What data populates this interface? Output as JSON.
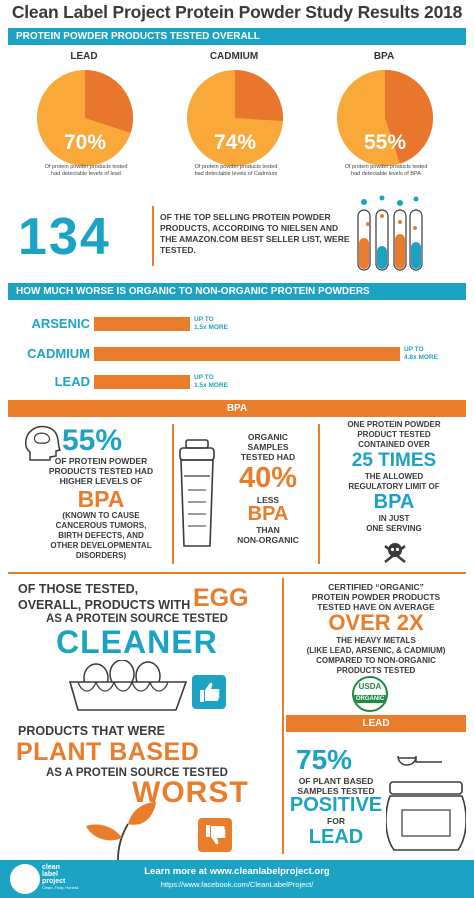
{
  "title": "Clean Label Project Protein Powder Study Results 2018",
  "section1_header": "PROTEIN POWDER PRODUCTS TESTED OVERALL",
  "pies": [
    {
      "label": "LEAD",
      "percent_text": "70%",
      "caption": "Of protein powder products tested had detectable levels of lead"
    },
    {
      "label": "CADMIUM",
      "percent_text": "74%",
      "caption": "Of protein powder products tested had detectable levels of Cadmium"
    },
    {
      "label": "BPA",
      "percent_text": "55%",
      "caption": "Of protein powder products tested had detectable levels of BPA"
    }
  ],
  "tested": {
    "number": "134",
    "text": "OF THE TOP SELLING PROTEIN POWDER PRODUCTS, ACCORDING TO NIELSEN AND THE AMAZON.COM BEST SELLER LIST, WERE TESTED."
  },
  "section2_header": "HOW MUCH WORSE IS ORGANIC TO NON-ORGANIC PROTEIN POWDERS",
  "chart_data": [
    {
      "type": "pie",
      "series": [
        {
          "name": "LEAD",
          "values": [
            70,
            30
          ]
        },
        {
          "name": "CADMIUM",
          "values": [
            74,
            26
          ]
        },
        {
          "name": "BPA",
          "values": [
            55,
            45
          ]
        }
      ]
    },
    {
      "type": "bar",
      "orientation": "horizontal",
      "categories": [
        "ARSENIC",
        "CADMIUM",
        "LEAD"
      ],
      "values": [
        1.5,
        4.8,
        1.5
      ],
      "annotations": [
        [
          "UP TO",
          "1.5x MORE"
        ],
        [
          "UP TO",
          "4.8x MORE"
        ],
        [
          "UP TO",
          "1.5x MORE"
        ]
      ],
      "xlim": [
        0,
        4.8
      ]
    }
  ],
  "bpa_header": "BPA",
  "bpa": {
    "left": {
      "pct": "55%",
      "line1": "OF PROTEIN POWDER",
      "line2": "PRODUCTS TESTED HAD",
      "line3": "HIGHER LEVELS OF",
      "big": "BPA",
      "note1": "(KNOWN TO CAUSE",
      "note2": "CANCEROUS TUMORS,",
      "note3": "BIRTH DEFECTS, AND",
      "note4": "OTHER DEVELOPMENTAL",
      "note5": "DISORDERS)"
    },
    "middle": {
      "l1": "ORGANIC",
      "l2": "SAMPLES",
      "l3": "TESTED HAD",
      "pct": "40%",
      "l4": "LESS",
      "big": "BPA",
      "l5": "THAN",
      "l6": "NON-ORGANIC"
    },
    "right": {
      "l1": "ONE PROTEIN POWDER",
      "l2": "PRODUCT TESTED",
      "l3": "CONTAINED OVER",
      "big": "25 TIMES",
      "l4": "THE ALLOWED",
      "l5": "REGULATORY LIMIT OF",
      "big2": "BPA",
      "l6": "IN JUST",
      "l7": "ONE SERVING"
    }
  },
  "egg": {
    "l1": "OF THOSE TESTED,",
    "l2": "OVERALL, PRODUCTS WITH",
    "egg": "EGG",
    "l3": "AS A PROTEIN SOURCE TESTED",
    "cleaner": "CLEANER"
  },
  "plant": {
    "l1": "PRODUCTS THAT WERE",
    "big": "PLANT BASED",
    "l2": "AS A PROTEIN SOURCE TESTED",
    "worst": "WORST"
  },
  "organic_box": {
    "l1": "CERTIFIED “ORGANIC”",
    "l2": "PROTEIN POWDER PRODUCTS",
    "l3": "TESTED HAVE ON AVERAGE",
    "big": "OVER 2X",
    "l4": "THE HEAVY METALS",
    "l5": "(LIKE LEAD, ARSENIC, & CADMIUM)",
    "l6": "COMPARED TO NON-ORGANIC",
    "l7": "PRODUCTS TESTED",
    "seal_top": "USDA",
    "seal_bottom": "ORGANIC"
  },
  "lead_header": "LEAD",
  "lead_box": {
    "pct": "75%",
    "l1": "OF PLANT BASED",
    "l2": "SAMPLES TESTED",
    "big": "POSITIVE",
    "l3": "FOR",
    "big2": "LEAD"
  },
  "footer": {
    "logo_line1": "clean",
    "logo_line2": "label",
    "logo_line3": "project",
    "tagline": "Clean. Truly. Honest.",
    "learn": "Learn more at www.cleanlabelproject.org",
    "facebook": "https://www.facebook.com/CleanLabelProject/"
  },
  "colors": {
    "blue": "#1ca3c4",
    "orange": "#ea7d2c",
    "pie_light": "#f9a83a",
    "pie_dark": "#e8762d"
  }
}
